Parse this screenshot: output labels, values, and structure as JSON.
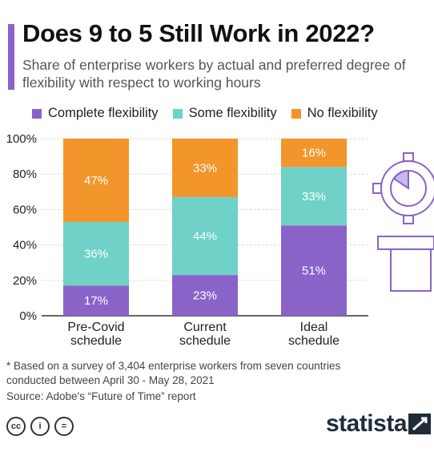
{
  "header": {
    "title": "Does 9 to 5 Still Work in 2022?",
    "subtitle": "Share of enterprise workers by actual and preferred degree of flexibility with respect to working hours",
    "accent_color": "#8a63c9"
  },
  "legend": [
    {
      "label": "Complete flexibility",
      "color": "#8a63c9"
    },
    {
      "label": "Some flexibility",
      "color": "#6fd1c7"
    },
    {
      "label": "No flexibility",
      "color": "#f2952b"
    }
  ],
  "chart_data": {
    "type": "bar",
    "stacked": true,
    "categories": [
      [
        "Pre-Covid",
        "schedule"
      ],
      [
        "Current",
        "schedule"
      ],
      [
        "Ideal",
        "schedule"
      ]
    ],
    "series": [
      {
        "name": "Complete flexibility",
        "values": [
          17,
          23,
          51
        ],
        "color": "#8a63c9"
      },
      {
        "name": "Some flexibility",
        "values": [
          36,
          44,
          33
        ],
        "color": "#6fd1c7"
      },
      {
        "name": "No flexibility",
        "values": [
          47,
          33,
          16
        ],
        "color": "#f2952b"
      }
    ],
    "data_labels": [
      [
        "17%",
        "23%",
        "51%"
      ],
      [
        "36%",
        "44%",
        "33%"
      ],
      [
        "47%",
        "33%",
        "16%"
      ]
    ],
    "yticks": [
      0,
      20,
      40,
      60,
      80,
      100
    ],
    "ytick_labels": [
      "0%",
      "20%",
      "40%",
      "60%",
      "80%",
      "100%"
    ],
    "ylim": [
      0,
      100
    ],
    "grid": true,
    "legend_position": "top"
  },
  "footer": {
    "footnote": "* Based on a survey of 3,404 enterprise workers from seven countries conducted between April 30 - May 28, 2021",
    "source": "Source: Adobe's “Future of Time” report",
    "brand": "statista",
    "license_icons": [
      "cc-icon",
      "attribution-icon",
      "no-derivatives-icon"
    ]
  }
}
